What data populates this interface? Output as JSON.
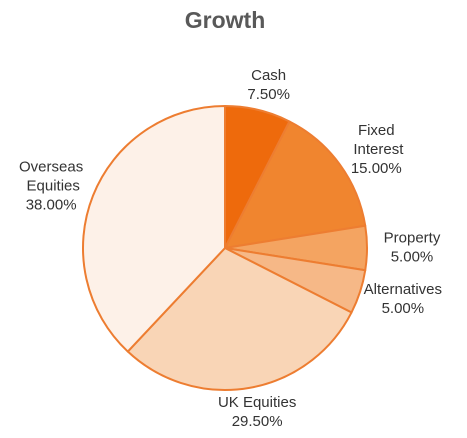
{
  "chart_data": {
    "type": "pie",
    "title": "Growth",
    "categories": [
      "Cash",
      "Fixed Interest",
      "Property",
      "Alternatives",
      "UK Equities",
      "Overseas Equities"
    ],
    "values": [
      7.5,
      15,
      5,
      5,
      29.5,
      38
    ],
    "value_labels": [
      "7.50%",
      "15.00%",
      "5.00%",
      "5.00%",
      "29.50%",
      "38.00%"
    ],
    "colors": [
      "#ee6a0c",
      "#f0852f",
      "#f4a461",
      "#f6b887",
      "#f9d5b6",
      "#fdf1e8"
    ],
    "edge_color": "#ed7d31"
  }
}
